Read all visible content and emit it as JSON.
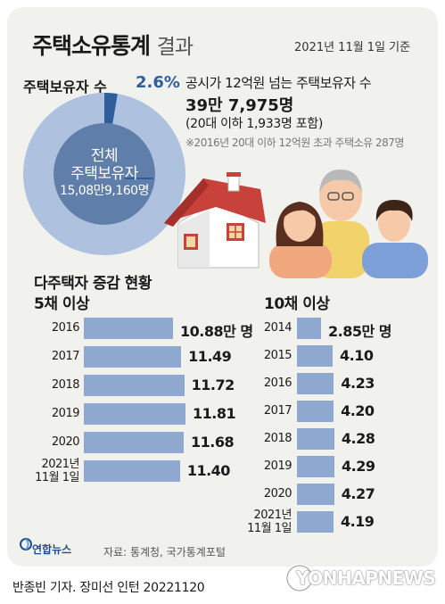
{
  "header": {
    "title": "주택소유통계",
    "title_suffix": "결과",
    "date": "2021년 11월 1일 기준"
  },
  "donut": {
    "label": "주택보유자 수",
    "pct_text": "2.6%",
    "share": 0.026,
    "center_line1": "전체",
    "center_line2": "주택보유자",
    "center_line3": "15,08만9,160명",
    "ring_color": "#aec1de",
    "highlight_color": "#2f5f9b"
  },
  "stats": {
    "line1": "공시가 12억원 넘는 주택보유자 수",
    "line2": "39만 7,975명",
    "line3": "(20대 이하 1,933명 포함)",
    "line4": "※2016년 20대 이하 12억원 초과 주택소유 287명"
  },
  "section_title": "다주택자 증감 현황",
  "chart_data": [
    {
      "type": "bar",
      "title": "5채 이상",
      "categories": [
        "2016",
        "2017",
        "2018",
        "2019",
        "2020",
        "2021년\n11월 1일"
      ],
      "values": [
        10.88,
        11.49,
        11.72,
        11.81,
        11.68,
        11.4
      ],
      "value_labels": [
        "10.88만 명",
        "11.49",
        "11.72",
        "11.81",
        "11.68",
        "11.40"
      ],
      "unit": "만 명"
    },
    {
      "type": "bar",
      "title": "10채 이상",
      "categories": [
        "2014",
        "2015",
        "2016",
        "2017",
        "2018",
        "2019",
        "2020",
        "2021년\n11월 1일"
      ],
      "values": [
        2.85,
        4.1,
        4.23,
        4.2,
        4.28,
        4.29,
        4.27,
        4.19
      ],
      "value_labels": [
        "2.85만 명",
        "4.10",
        "4.23",
        "4.20",
        "4.28",
        "4.29",
        "4.27",
        "4.19"
      ],
      "unit": "만 명"
    }
  ],
  "footer": {
    "logo_text": "연합뉴스",
    "source": "자료: 통계청, 국가통계포털",
    "credit": "반종빈 기자. 장미선 인턴  20221120",
    "watermark": "YONHAPNEWS"
  }
}
